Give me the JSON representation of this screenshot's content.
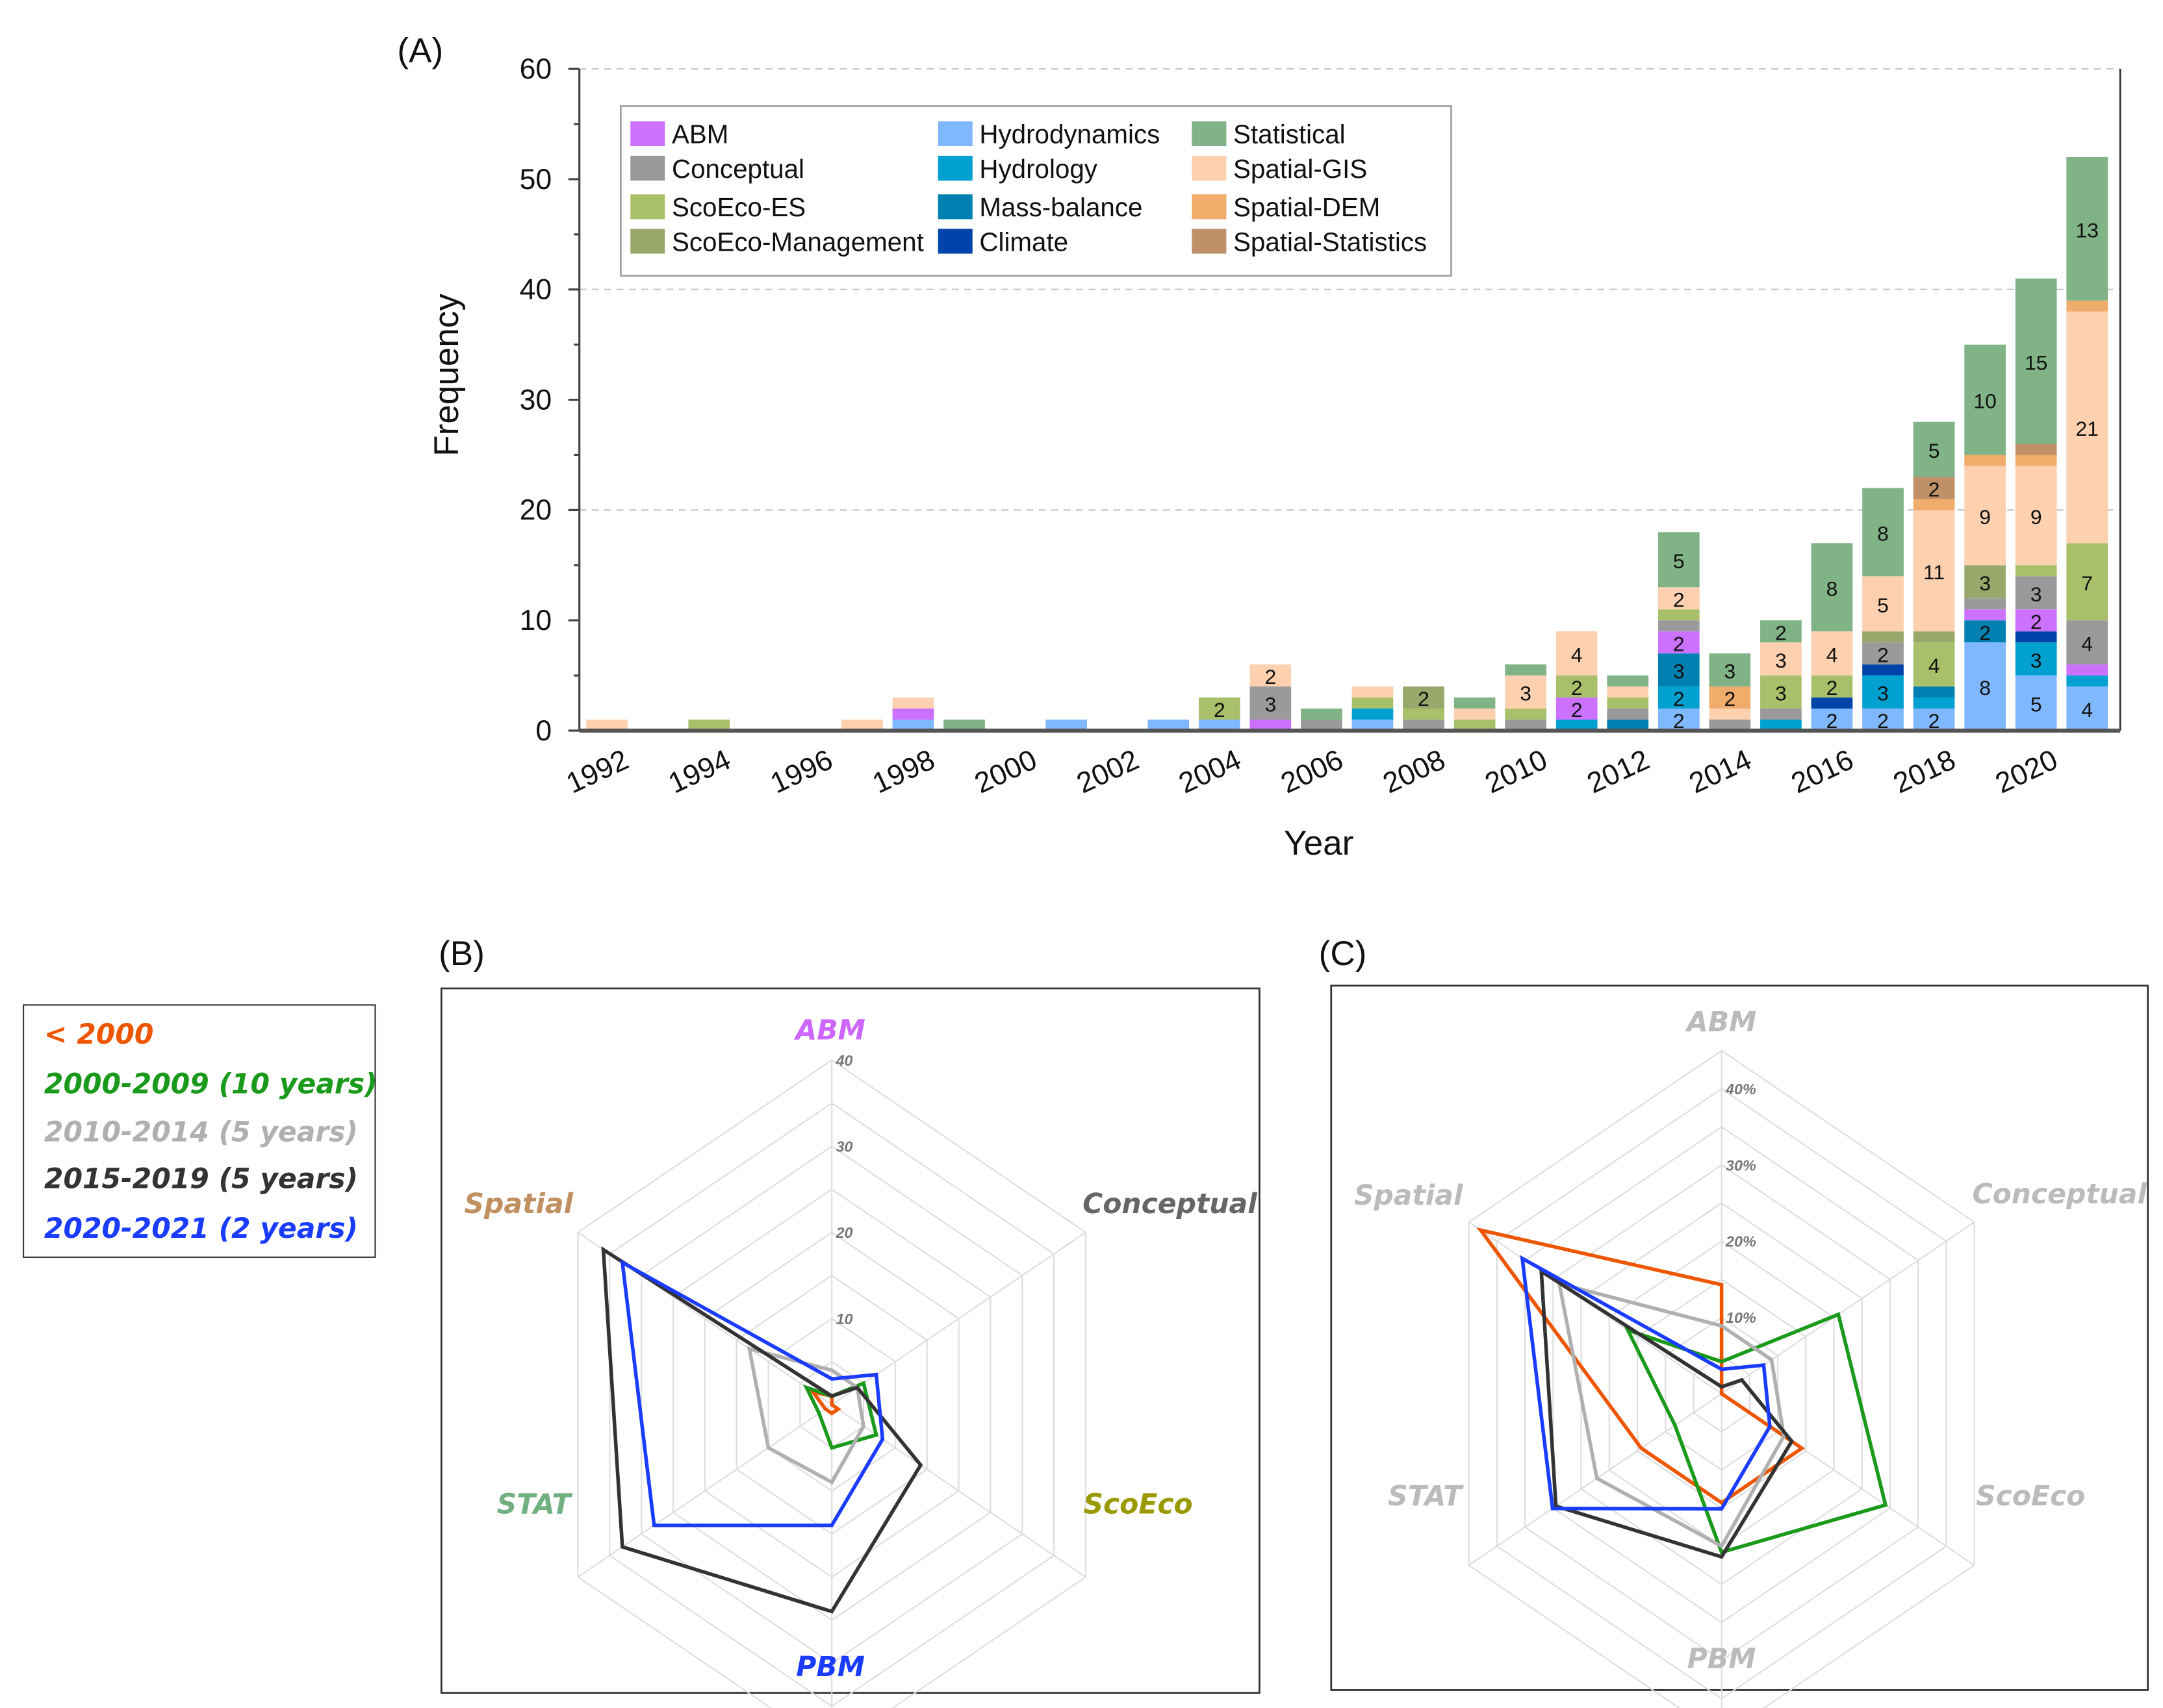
{
  "panel_labels": {
    "a": "(A)",
    "b": "(B)",
    "c": "(C)"
  },
  "period_legend": [
    {
      "label": "< 2000",
      "color": "#ee5500"
    },
    {
      "label": "2000-2009 (10 years)",
      "color": "#1a9a1a"
    },
    {
      "label": "2010-2014 (5 years)",
      "color": "#b0b0b0"
    },
    {
      "label": "2015-2019 (5 years)",
      "color": "#333333"
    },
    {
      "label": "2020-2021 (2 years)",
      "color": "#1a3cff"
    }
  ],
  "chart_data": [
    {
      "type": "bar",
      "stacked": true,
      "title": "",
      "xlabel": "Year",
      "ylabel": "Frequency",
      "ylim": [
        0,
        60
      ],
      "yticks": [
        "0",
        "10",
        "20",
        "30",
        "40",
        "50",
        "60"
      ],
      "xticks": [
        "1992",
        "1994",
        "1996",
        "1998",
        "2000",
        "2002",
        "2004",
        "2006",
        "2008",
        "2010",
        "2012",
        "2014",
        "2016",
        "2018",
        "2020"
      ],
      "grid": "dashed at 20, 40, 60",
      "legend": "top",
      "categories": [
        1992,
        1993,
        1994,
        1995,
        1996,
        1997,
        1998,
        1999,
        2000,
        2001,
        2002,
        2003,
        2004,
        2005,
        2006,
        2007,
        2008,
        2009,
        2010,
        2011,
        2012,
        2013,
        2014,
        2015,
        2016,
        2017,
        2018,
        2019,
        2020,
        2021
      ],
      "series": [
        {
          "name": "Hydrodynamics",
          "color": "#80b8ff",
          "values": [
            0,
            0,
            0,
            0,
            0,
            0,
            1,
            0,
            0,
            1,
            0,
            1,
            1,
            0,
            0,
            1,
            0,
            0,
            0,
            0,
            0,
            2,
            0,
            0,
            2,
            2,
            2,
            8,
            5,
            4
          ]
        },
        {
          "name": "Hydrology",
          "color": "#00a0d0",
          "values": [
            0,
            0,
            0,
            0,
            0,
            0,
            0,
            0,
            0,
            0,
            0,
            0,
            0,
            0,
            0,
            1,
            0,
            0,
            0,
            1,
            0,
            2,
            0,
            1,
            0,
            3,
            1,
            0,
            3,
            1
          ]
        },
        {
          "name": "Mass-balance",
          "color": "#0080b0",
          "values": [
            0,
            0,
            0,
            0,
            0,
            0,
            0,
            0,
            0,
            0,
            0,
            0,
            0,
            0,
            0,
            0,
            0,
            0,
            0,
            0,
            1,
            3,
            0,
            0,
            0,
            0,
            1,
            2,
            0,
            0
          ]
        },
        {
          "name": "Climate",
          "color": "#0044aa",
          "values": [
            0,
            0,
            0,
            0,
            0,
            0,
            0,
            0,
            0,
            0,
            0,
            0,
            0,
            0,
            0,
            0,
            0,
            0,
            0,
            0,
            0,
            0,
            0,
            0,
            1,
            1,
            0,
            0,
            1,
            0
          ]
        },
        {
          "name": "ABM",
          "color": "#cc70ff",
          "values": [
            0,
            0,
            0,
            0,
            0,
            0,
            1,
            0,
            0,
            0,
            0,
            0,
            0,
            1,
            0,
            0,
            0,
            0,
            0,
            2,
            0,
            2,
            0,
            0,
            0,
            0,
            0,
            1,
            2,
            1
          ]
        },
        {
          "name": "Conceptual",
          "color": "#9a9a9a",
          "values": [
            0,
            0,
            0,
            0,
            0,
            0,
            0,
            0,
            0,
            0,
            0,
            0,
            0,
            3,
            1,
            0,
            1,
            0,
            1,
            0,
            1,
            1,
            1,
            1,
            0,
            2,
            0,
            1,
            3,
            4
          ]
        },
        {
          "name": "ScoEco-ES",
          "color": "#a9c06a",
          "values": [
            0,
            0,
            1,
            0,
            0,
            0,
            0,
            0,
            0,
            0,
            0,
            0,
            2,
            0,
            0,
            1,
            1,
            1,
            1,
            2,
            1,
            1,
            0,
            3,
            2,
            0,
            4,
            0,
            1,
            7
          ]
        },
        {
          "name": "ScoEco-Management",
          "color": "#98a86a",
          "values": [
            0,
            0,
            0,
            0,
            0,
            0,
            0,
            0,
            0,
            0,
            0,
            0,
            0,
            0,
            0,
            0,
            2,
            0,
            0,
            0,
            0,
            0,
            0,
            0,
            0,
            1,
            1,
            3,
            0,
            0
          ]
        },
        {
          "name": "Spatial-GIS",
          "color": "#fdd0b0",
          "values": [
            1,
            0,
            0,
            0,
            0,
            1,
            1,
            0,
            0,
            0,
            0,
            0,
            0,
            2,
            0,
            1,
            0,
            1,
            3,
            4,
            1,
            2,
            1,
            3,
            4,
            5,
            11,
            9,
            9,
            21
          ]
        },
        {
          "name": "Spatial-DEM",
          "color": "#f0ac6a",
          "values": [
            0,
            0,
            0,
            0,
            0,
            0,
            0,
            0,
            0,
            0,
            0,
            0,
            0,
            0,
            0,
            0,
            0,
            0,
            0,
            0,
            0,
            0,
            2,
            0,
            0,
            0,
            1,
            1,
            1,
            1
          ]
        },
        {
          "name": "Spatial-Statistics",
          "color": "#c09068",
          "values": [
            0,
            0,
            0,
            0,
            0,
            0,
            0,
            0,
            0,
            0,
            0,
            0,
            0,
            0,
            0,
            0,
            0,
            0,
            0,
            0,
            0,
            0,
            0,
            0,
            0,
            0,
            2,
            0,
            1,
            0
          ]
        },
        {
          "name": "Statistical",
          "color": "#80b386",
          "values": [
            0,
            0,
            0,
            0,
            0,
            0,
            0,
            1,
            0,
            0,
            0,
            0,
            0,
            0,
            1,
            0,
            0,
            1,
            1,
            0,
            1,
            5,
            3,
            2,
            8,
            8,
            5,
            10,
            15,
            13
          ]
        }
      ],
      "legend_order": [
        "ABM",
        "Conceptual",
        "ScoEco-ES",
        "ScoEco-Management",
        "Hydrodynamics",
        "Hydrology",
        "Mass-balance",
        "Climate",
        "Statistical",
        "Spatial-GIS",
        "Spatial-DEM",
        "Spatial-Statistics"
      ]
    },
    {
      "type": "radar",
      "title": "(B)",
      "axes": [
        "ABM",
        "Conceptual",
        "ScoEco",
        "PBM",
        "STAT",
        "Spatial"
      ],
      "axis_colors": [
        "#cc66ff",
        "#666666",
        "#999900",
        "#1a3cff",
        "#70b080",
        "#c09060"
      ],
      "rlim": [
        0,
        40
      ],
      "rticks": [
        "10",
        "20",
        "30",
        "40"
      ],
      "series": [
        {
          "name": "< 2000",
          "values": [
            1,
            0,
            1,
            1,
            1,
            3
          ]
        },
        {
          "name": "2000-2009 (10 years)",
          "values": [
            1,
            5,
            7,
            5,
            2,
            4
          ]
        },
        {
          "name": "2010-2014 (5 years)",
          "values": [
            4,
            4,
            5,
            9,
            10,
            13
          ]
        },
        {
          "name": "2015-2019 (5 years)",
          "values": [
            1,
            4,
            14,
            24,
            33,
            36
          ]
        },
        {
          "name": "2020-2021 (2 years)",
          "values": [
            3,
            7,
            8,
            14,
            28,
            33
          ]
        }
      ]
    },
    {
      "type": "radar",
      "title": "(C)",
      "axes": [
        "ABM",
        "Conceptual",
        "ScoEco",
        "PBM",
        "STAT",
        "Spatial"
      ],
      "axis_colors": [
        "#bbbbbb",
        "#bbbbbb",
        "#bbbbbb",
        "#bbbbbb",
        "#bbbbbb",
        "#bbbbbb"
      ],
      "rlim": [
        0,
        45
      ],
      "rticks": [
        "10%",
        "20%",
        "30%",
        "40%"
      ],
      "series": [
        {
          "name": "< 2000",
          "values": [
            14.3,
            0,
            14.3,
            14.3,
            14.3,
            42.9
          ]
        },
        {
          "name": "2000-2009 (10 years)",
          "values": [
            4.2,
            20.8,
            29.2,
            20.8,
            8.3,
            16.7
          ]
        },
        {
          "name": "2010-2014 (5 years)",
          "values": [
            8.9,
            8.9,
            11.1,
            20,
            22.2,
            28.9
          ]
        },
        {
          "name": "2015-2019 (5 years)",
          "values": [
            0.9,
            3.6,
            12.5,
            21.4,
            29.5,
            32.1
          ]
        },
        {
          "name": "2020-2021 (2 years)",
          "values": [
            3.2,
            7.5,
            8.6,
            15.1,
            30.1,
            35.5
          ]
        }
      ]
    }
  ]
}
